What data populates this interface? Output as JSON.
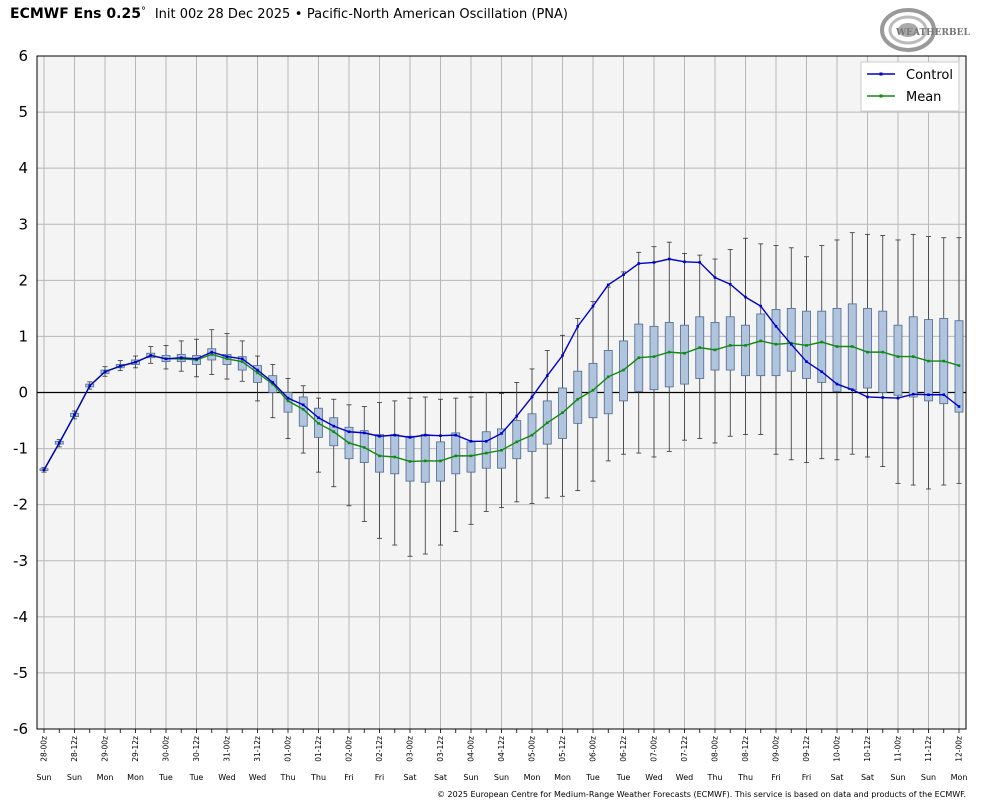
{
  "header": {
    "model": "ECMWF Ens 0.25",
    "degree": "°",
    "init": "Init 00z 28 Dec 2025",
    "separator": "•",
    "index_name": "Pacific-North American Oscillation (PNA)"
  },
  "logo": {
    "text": "WEATHERBELL",
    "icon": "weatherbell-swirl-logo"
  },
  "footer": "© 2025 European Centre for Medium-Range Weather Forecasts (ECMWF). This service is based on data and products of the ECMWF.",
  "colors": {
    "control": "#0000cc",
    "mean": "#118811",
    "box_fill": "#b0c4de",
    "box_edge": "#4d6a8f",
    "plot_bg": "#f4f4f4",
    "grid": "#b8b8b8"
  },
  "chart_data": {
    "type": "box",
    "ylim": [
      -6,
      6
    ],
    "yticks": [
      "6",
      "5",
      "4",
      "3",
      "2",
      "1",
      "0",
      "-1",
      "-2",
      "-3",
      "-4",
      "-5",
      "-6"
    ],
    "grid": true,
    "legend_position": "top-right",
    "legend": [
      "Control",
      "Mean"
    ],
    "x": [
      "28-00z",
      "28-12z",
      "29-00z",
      "29-12z",
      "30-00z",
      "30-12z",
      "31-00z",
      "31-12z",
      "01-00z",
      "01-12z",
      "02-00z",
      "02-12z",
      "03-00z",
      "03-12z",
      "04-00z",
      "04-12z",
      "05-00z",
      "05-12z",
      "06-00z",
      "06-12z",
      "07-00z",
      "07-12z",
      "08-00z",
      "08-12z",
      "09-00z",
      "09-12z",
      "10-00z",
      "10-12z",
      "11-00z",
      "11-12z",
      "12-00z"
    ],
    "x_days": [
      "Sun",
      "Sun",
      "Mon",
      "Mon",
      "Tue",
      "Tue",
      "Wed",
      "Wed",
      "Thu",
      "Thu",
      "Fri",
      "Fri",
      "Sat",
      "Sat",
      "Sun",
      "Sun",
      "Mon",
      "Mon",
      "Tue",
      "Tue",
      "Wed",
      "Wed",
      "Thu",
      "Thu",
      "Fri",
      "Fri",
      "Sat",
      "Sat",
      "Sun",
      "Sun",
      "Mon"
    ],
    "series": [
      {
        "name": "Control",
        "values": [
          -1.38,
          -0.9,
          -0.4,
          0.12,
          0.37,
          0.47,
          0.54,
          0.66,
          0.6,
          0.62,
          0.6,
          0.72,
          0.64,
          0.6,
          0.4,
          0.18,
          -0.1,
          -0.22,
          -0.45,
          -0.6,
          -0.7,
          -0.72,
          -0.78,
          -0.76,
          -0.8,
          -0.76,
          -0.77,
          -0.76,
          -0.87,
          -0.87,
          -0.73,
          -0.42,
          -0.08,
          0.3,
          0.66,
          1.18,
          1.54,
          1.92,
          2.1,
          2.3,
          2.32,
          2.38,
          2.33,
          2.32,
          2.05,
          1.93,
          1.7,
          1.54,
          1.18,
          0.86,
          0.55,
          0.37,
          0.15,
          0.05,
          -0.08,
          -0.09,
          -0.1,
          -0.03,
          -0.04,
          -0.04,
          -0.25
        ]
      },
      {
        "name": "Mean",
        "values": [
          -1.38,
          -0.9,
          -0.4,
          0.12,
          0.37,
          0.47,
          0.54,
          0.66,
          0.6,
          0.6,
          0.58,
          0.68,
          0.6,
          0.55,
          0.35,
          0.15,
          -0.15,
          -0.3,
          -0.55,
          -0.7,
          -0.9,
          -0.98,
          -1.13,
          -1.15,
          -1.23,
          -1.22,
          -1.22,
          -1.13,
          -1.13,
          -1.08,
          -1.03,
          -0.88,
          -0.76,
          -0.54,
          -0.36,
          -0.12,
          0.04,
          0.28,
          0.4,
          0.62,
          0.64,
          0.72,
          0.7,
          0.8,
          0.76,
          0.84,
          0.84,
          0.92,
          0.86,
          0.88,
          0.84,
          0.9,
          0.82,
          0.82,
          0.72,
          0.72,
          0.64,
          0.64,
          0.56,
          0.56,
          0.48
        ]
      },
      {
        "name": "box_q1",
        "values": [
          -1.39,
          -0.92,
          -0.43,
          0.1,
          0.34,
          0.44,
          0.5,
          0.62,
          0.55,
          0.55,
          0.5,
          0.58,
          0.5,
          0.4,
          0.18,
          0.0,
          -0.35,
          -0.6,
          -0.8,
          -0.95,
          -1.18,
          -1.25,
          -1.42,
          -1.45,
          -1.58,
          -1.6,
          -1.58,
          -1.45,
          -1.42,
          -1.35,
          -1.35,
          -1.18,
          -1.05,
          -0.92,
          -0.82,
          -0.55,
          -0.45,
          -0.38,
          -0.15,
          0.02,
          0.05,
          0.1,
          0.15,
          0.25,
          0.4,
          0.4,
          0.3,
          0.3,
          0.3,
          0.38,
          0.25,
          0.18,
          0.02,
          0.05,
          0.08,
          0.0,
          -0.05,
          -0.08,
          -0.15,
          -0.2,
          -0.35
        ]
      },
      {
        "name": "box_q3",
        "values": [
          -1.36,
          -0.87,
          -0.37,
          0.15,
          0.4,
          0.5,
          0.58,
          0.7,
          0.66,
          0.68,
          0.66,
          0.78,
          0.68,
          0.64,
          0.48,
          0.3,
          0.0,
          -0.08,
          -0.28,
          -0.45,
          -0.62,
          -0.68,
          -0.75,
          -0.75,
          -0.78,
          -0.75,
          -0.88,
          -0.72,
          -0.88,
          -0.7,
          -0.65,
          -0.5,
          -0.38,
          -0.15,
          0.08,
          0.38,
          0.52,
          0.75,
          0.92,
          1.22,
          1.18,
          1.25,
          1.2,
          1.35,
          1.25,
          1.35,
          1.2,
          1.4,
          1.48,
          1.5,
          1.45,
          1.45,
          1.5,
          1.58,
          1.5,
          1.45,
          1.2,
          1.35,
          1.3,
          1.32,
          1.28
        ]
      },
      {
        "name": "whisker_low",
        "values": [
          -1.42,
          -0.97,
          -0.47,
          0.06,
          0.29,
          0.39,
          0.44,
          0.52,
          0.42,
          0.38,
          0.28,
          0.32,
          0.24,
          0.2,
          -0.15,
          -0.45,
          -0.82,
          -1.08,
          -1.42,
          -1.68,
          -2.02,
          -2.3,
          -2.6,
          -2.72,
          -2.92,
          -2.88,
          -2.72,
          -2.48,
          -2.35,
          -2.12,
          -2.05,
          -1.95,
          -1.98,
          -1.88,
          -1.85,
          -1.75,
          -1.58,
          -1.22,
          -1.1,
          -1.08,
          -1.15,
          -1.05,
          -0.85,
          -0.82,
          -0.9,
          -0.78,
          -0.75,
          -0.75,
          -1.1,
          -1.2,
          -1.25,
          -1.18,
          -1.2,
          -1.1,
          -1.15,
          -1.32,
          -1.62,
          -1.65,
          -1.72,
          -1.65,
          -1.62
        ]
      },
      {
        "name": "whisker_high",
        "values": [
          -1.34,
          -0.84,
          -0.33,
          0.19,
          0.46,
          0.57,
          0.65,
          0.82,
          0.84,
          0.92,
          0.95,
          1.12,
          1.05,
          0.92,
          0.65,
          0.5,
          0.25,
          0.12,
          -0.1,
          -0.12,
          -0.22,
          -0.25,
          -0.18,
          -0.15,
          -0.1,
          -0.08,
          -0.12,
          -0.1,
          -0.08,
          0.0,
          -0.02,
          0.18,
          0.42,
          0.75,
          1.02,
          1.32,
          1.62,
          1.88,
          2.15,
          2.5,
          2.6,
          2.68,
          2.48,
          2.45,
          2.38,
          2.55,
          2.75,
          2.65,
          2.62,
          2.58,
          2.42,
          2.62,
          2.72,
          2.85,
          2.82,
          2.8,
          2.72,
          2.82,
          2.78,
          2.76,
          2.76
        ]
      }
    ]
  }
}
